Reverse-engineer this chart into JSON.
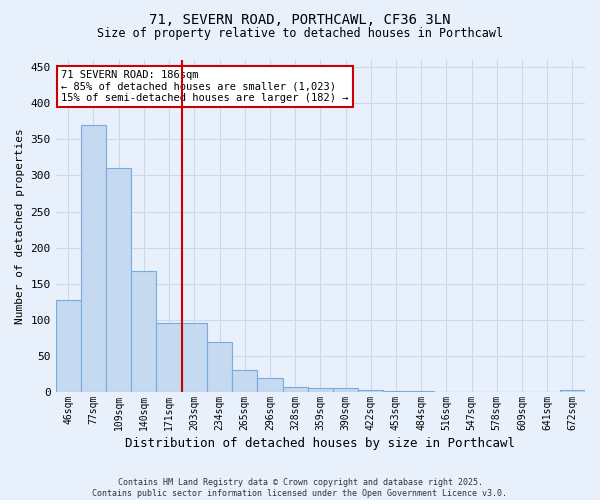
{
  "title1": "71, SEVERN ROAD, PORTHCAWL, CF36 3LN",
  "title2": "Size of property relative to detached houses in Porthcawl",
  "xlabel": "Distribution of detached houses by size in Porthcawl",
  "ylabel": "Number of detached properties",
  "categories": [
    "46sqm",
    "77sqm",
    "109sqm",
    "140sqm",
    "171sqm",
    "203sqm",
    "234sqm",
    "265sqm",
    "296sqm",
    "328sqm",
    "359sqm",
    "390sqm",
    "422sqm",
    "453sqm",
    "484sqm",
    "516sqm",
    "547sqm",
    "578sqm",
    "609sqm",
    "641sqm",
    "672sqm"
  ],
  "values": [
    127,
    370,
    310,
    167,
    95,
    95,
    70,
    30,
    20,
    7,
    5,
    5,
    3,
    2,
    1,
    0,
    0,
    0,
    0,
    0,
    3
  ],
  "bar_color": "#c5d9f1",
  "bar_edge_color": "#7aabdc",
  "vline_color": "#cc0000",
  "annotation_text": "71 SEVERN ROAD: 186sqm\n← 85% of detached houses are smaller (1,023)\n15% of semi-detached houses are larger (182) →",
  "annotation_box_color": "#ffffff",
  "annotation_box_edge": "#cc0000",
  "ylim": [
    0,
    460
  ],
  "yticks": [
    0,
    50,
    100,
    150,
    200,
    250,
    300,
    350,
    400,
    450
  ],
  "background_color": "#e8f0fb",
  "grid_color": "#c8d8ee",
  "footer_line1": "Contains HM Land Registry data © Crown copyright and database right 2025.",
  "footer_line2": "Contains public sector information licensed under the Open Government Licence v3.0."
}
